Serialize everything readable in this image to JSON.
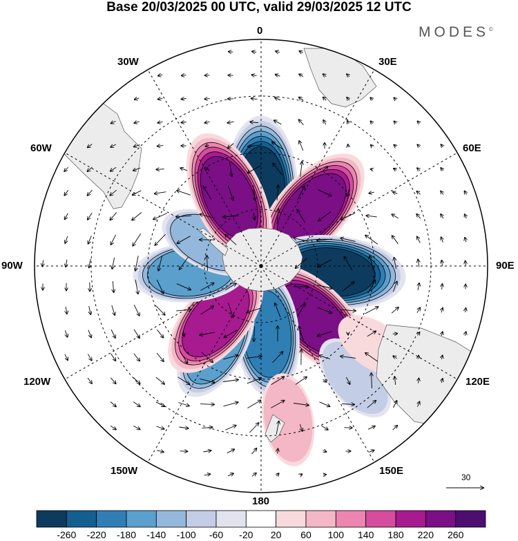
{
  "title": "Base 20/03/2025 00 UTC, valid 29/03/2025 12 UTC",
  "brand": "MODES",
  "brand_mark": "©",
  "longitude_labels": {
    "lon_0": "0",
    "lon_30e": "30E",
    "lon_60e": "60E",
    "lon_90e": "90E",
    "lon_120e": "120E",
    "lon_150e": "150E",
    "lon_180": "180",
    "lon_150w": "150W",
    "lon_120w": "120W",
    "lon_90w": "90W",
    "lon_60w": "60W",
    "lon_30w": "30W"
  },
  "reference_vector": "30",
  "colorbar": {
    "ticks": [
      "-260",
      "-220",
      "-180",
      "-140",
      "-100",
      "-60",
      "-20",
      "20",
      "60",
      "100",
      "140",
      "180",
      "220",
      "260"
    ],
    "colors": [
      "#0d3b5e",
      "#135f8f",
      "#2f7fb5",
      "#5b9fcc",
      "#93b8dc",
      "#c4cde6",
      "#e3e3f0",
      "#ffffff",
      "#f8dadd",
      "#f4b7c6",
      "#ec85b0",
      "#d64c9f",
      "#a81a8f",
      "#7a0f86",
      "#4c0f70"
    ]
  },
  "map": {
    "projection": "south-polar-stereographic",
    "anomalies": [
      {
        "lon": 0,
        "colat": 30,
        "value": -270
      },
      {
        "lon": 42,
        "colat": 30,
        "value": 240
      },
      {
        "lon": 95,
        "colat": 28,
        "value": -280
      },
      {
        "lon": 135,
        "colat": 30,
        "value": 260
      },
      {
        "lon": 175,
        "colat": 27,
        "value": -220
      },
      {
        "lon": -150,
        "colat": 36,
        "value": -160
      },
      {
        "lon": -140,
        "colat": 28,
        "value": 200
      },
      {
        "lon": -95,
        "colat": 28,
        "value": -170
      },
      {
        "lon": -65,
        "colat": 22,
        "value": -110
      },
      {
        "lon": -25,
        "colat": 30,
        "value": 230
      },
      {
        "lon": 140,
        "colat": 58,
        "value": -100
      },
      {
        "lon": 170,
        "colat": 62,
        "value": 80
      },
      {
        "lon": 125,
        "colat": 55,
        "value": 60
      }
    ]
  }
}
